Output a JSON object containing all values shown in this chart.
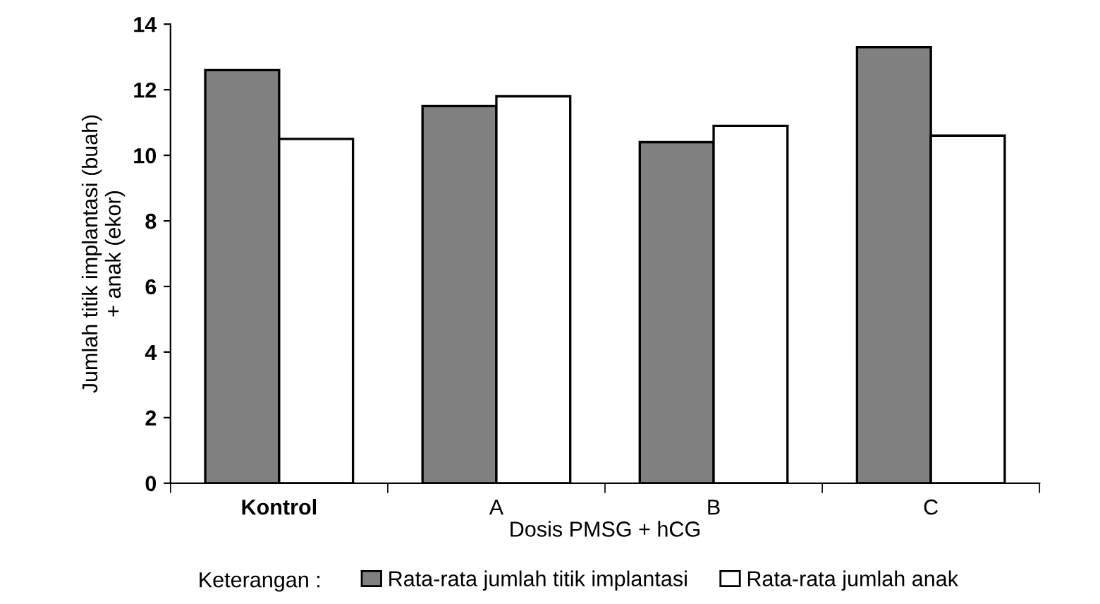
{
  "chart_data": {
    "type": "bar",
    "xlabel": "Dosis PMSG + hCG",
    "ylabel": "Jumlah titik implantasi (buah)\n+ anak (ekor)",
    "legend_title": "Keterangan :",
    "categories": [
      "Kontrol",
      "A",
      "B",
      "C"
    ],
    "series": [
      {
        "name": "Rata-rata jumlah titik implantasi",
        "color": "#808080",
        "values": [
          12.6,
          11.5,
          10.4,
          13.3
        ]
      },
      {
        "name": "Rata-rata jumlah anak",
        "color": "#ffffff",
        "values": [
          10.5,
          11.8,
          10.9,
          10.6
        ]
      }
    ],
    "ylim": [
      0,
      14
    ],
    "yticks": [
      0,
      2,
      4,
      6,
      8,
      10,
      12,
      14
    ],
    "grid": false,
    "legend": "bottom"
  }
}
